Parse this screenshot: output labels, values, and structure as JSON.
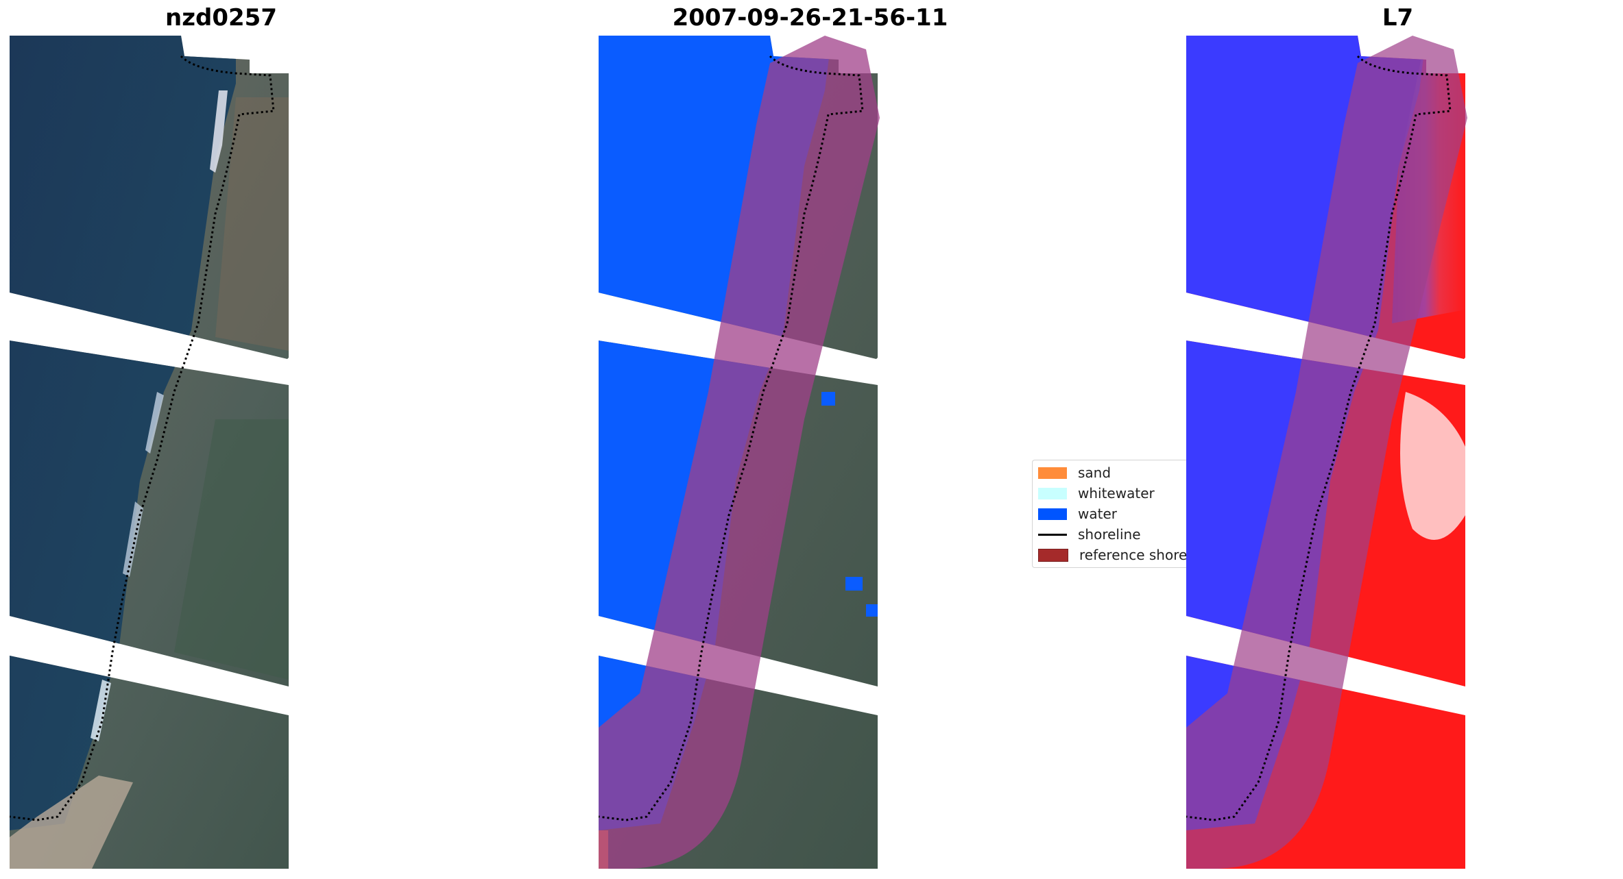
{
  "panels": [
    {
      "title": "nzd0257",
      "view": "rgb"
    },
    {
      "title": "2007-09-26-21-56-11",
      "view": "classified"
    },
    {
      "title": "L7",
      "view": "index"
    }
  ],
  "legend": {
    "items": [
      {
        "label": "sand",
        "color": "#ff8c3a"
      },
      {
        "label": "whitewater",
        "color": "#c8ffff"
      },
      {
        "label": "water",
        "color": "#0055ff"
      },
      {
        "label": "shoreline",
        "color": "#000000"
      },
      {
        "label": "reference shoreline buffer",
        "color": "#a52a2a"
      }
    ]
  },
  "colors": {
    "water_class": "#0a5cff",
    "buffer_overlay": "#a0408a",
    "land_index": "#ff1a1a",
    "water_index": "#3b3bff",
    "deep_water_rgb": "#1f3b5c",
    "shoreline": "#000000"
  }
}
